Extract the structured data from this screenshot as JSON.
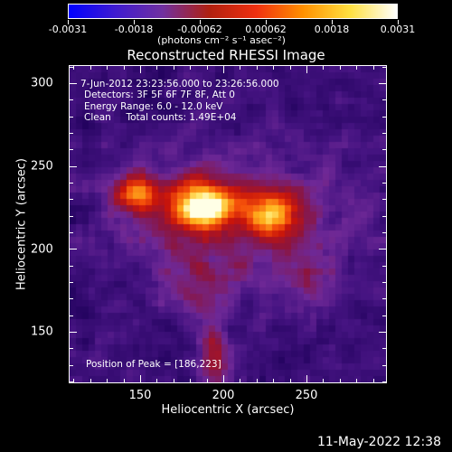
{
  "colorbar": {
    "tick_labels": [
      "-0.0031",
      "-0.0018",
      "-0.00062",
      "0.00062",
      "0.0018",
      "0.0031"
    ],
    "units": "(photons cm⁻² s⁻¹ asec⁻²)",
    "colors": [
      "#0000ff",
      "#3f1bd0",
      "#7030a0",
      "#b02010",
      "#f03010",
      "#ff9000",
      "#ffe040",
      "#ffffff"
    ]
  },
  "plot": {
    "title": "Reconstructed RHESSI Image",
    "annotations": [
      "7-Jun-2012 23:23:56.000 to 23:26:56.000",
      "Detectors: 3F 5F 6F 7F 8F, Att 0",
      "Energy Range: 6.0 - 12.0 keV",
      "Clean     Total counts: 1.49E+04"
    ],
    "peak_label": "Position of Peak = [186,223]",
    "xlabel": "Heliocentric X (arcsec)",
    "ylabel": "Heliocentric Y (arcsec)",
    "x_tick_labels": [
      "150",
      "200",
      "250"
    ],
    "y_tick_labels": [
      "300",
      "250",
      "200",
      "150"
    ]
  },
  "footer": {
    "date": "11-May-2022 12:38"
  }
}
